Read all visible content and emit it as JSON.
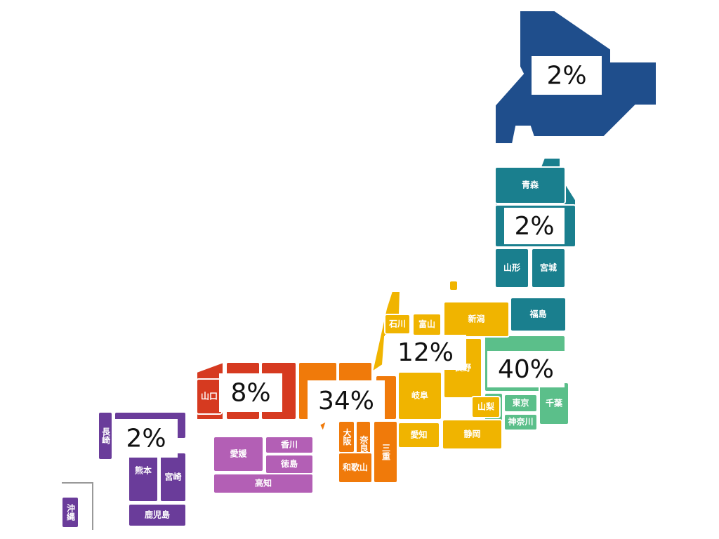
{
  "regions": [
    {
      "percent": "2%"
    },
    {
      "percent": "2%",
      "prefectures": [
        "青森",
        "山形",
        "宮城",
        "福島"
      ]
    },
    {
      "percent": "40%",
      "prefectures": [
        "東京",
        "神奈川",
        "千葉"
      ]
    },
    {
      "percent": "12%",
      "prefectures": [
        "新潟",
        "石川",
        "富山",
        "長野",
        "岐阜",
        "山梨",
        "愛知",
        "静岡"
      ]
    },
    {
      "percent": "34%",
      "prefectures": [
        "大阪",
        "奈良",
        "和歌山",
        "三重"
      ]
    },
    {
      "percent": "8%",
      "prefectures": [
        "山口"
      ]
    },
    {
      "percent": "",
      "prefectures": [
        "香川",
        "愛媛",
        "徳島",
        "高知"
      ]
    },
    {
      "percent": "2%",
      "prefectures": [
        "長崎",
        "熊本",
        "宮崎",
        "鹿児島",
        "沖縄"
      ]
    }
  ]
}
